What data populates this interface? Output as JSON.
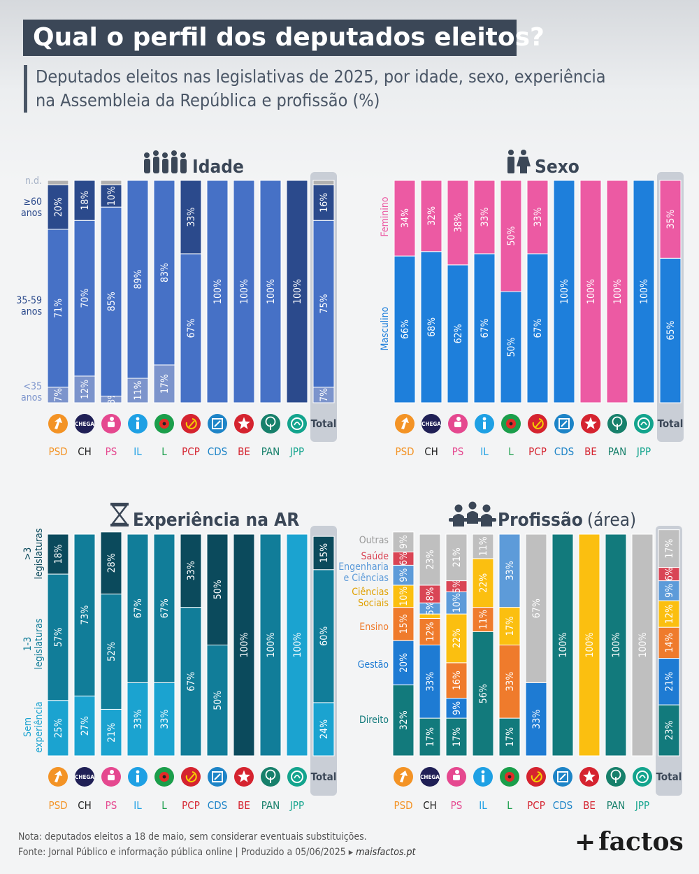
{
  "header": {
    "title": "Qual o perfil dos deputados eleitos?",
    "subtitle_line1": "Deputados eleitos nas legislativas de 2025, por idade, sexo, experiência",
    "subtitle_line2": "na Assembleia da República e profissão (%)"
  },
  "parties": [
    {
      "name": "PSD",
      "color": "#f39325",
      "logo": "psd-arrow-icon"
    },
    {
      "name": "CH",
      "color": "#202056",
      "logo": "chega-logo"
    },
    {
      "name": "PS",
      "color": "#e5488f",
      "logo": "ps-fist-rose-icon"
    },
    {
      "name": "IL",
      "color": "#1ea0e4",
      "logo": "il-i-icon"
    },
    {
      "name": "L",
      "color": "#1b9e4b",
      "logo": "livre-poppy-icon"
    },
    {
      "name": "PCP",
      "color": "#d5232f",
      "logo": "pcp-hammer-sickle-icon"
    },
    {
      "name": "CDS",
      "color": "#1d84c7",
      "logo": "cds-square-icon"
    },
    {
      "name": "BE",
      "color": "#d5232f",
      "logo": "be-star-figure-icon"
    },
    {
      "name": "PAN",
      "color": "#17806b",
      "logo": "pan-tree-icon"
    },
    {
      "name": "JPP",
      "color": "#13a48d",
      "logo": "jpp-circle-icon"
    }
  ],
  "total_label": "Total",
  "chart_data": [
    {
      "type": "bar",
      "stacked": true,
      "title": "Idade",
      "icon": "people-silhouettes-icon",
      "categories": [
        "PSD",
        "CH",
        "PS",
        "IL",
        "L",
        "PCP",
        "CDS",
        "BE",
        "PAN",
        "JPP",
        "Total"
      ],
      "series": [
        {
          "name": "<35 anos",
          "values": [
            7,
            12,
            3,
            11,
            17,
            0,
            0,
            0,
            0,
            0,
            7
          ],
          "color": "#7c94cc"
        },
        {
          "name": "35-59 anos",
          "values": [
            71,
            70,
            85,
            89,
            83,
            67,
            100,
            100,
            100,
            100,
            75
          ],
          "color": "#4671c6"
        },
        {
          "name": "≥60 anos",
          "values": [
            20,
            18,
            10,
            0,
            0,
            33,
            0,
            0,
            0,
            0,
            16
          ],
          "color": "#2b4a8c"
        },
        {
          "name": "n.d.",
          "values": [
            2,
            0,
            2,
            0,
            0,
            0,
            0,
            0,
            0,
            0,
            2
          ],
          "color": "#b0b0b0"
        }
      ],
      "full_colors": {
        "JPP": "#2b4a8c"
      },
      "ylim": [
        0,
        100
      ]
    },
    {
      "type": "bar",
      "stacked": true,
      "title": "Sexo",
      "icon": "man-woman-icon",
      "categories": [
        "PSD",
        "CH",
        "PS",
        "IL",
        "L",
        "PCP",
        "CDS",
        "BE",
        "PAN",
        "JPP",
        "Total"
      ],
      "series": [
        {
          "name": "Masculino",
          "values": [
            66,
            68,
            62,
            67,
            50,
            67,
            100,
            0,
            0,
            100,
            65
          ],
          "color": "#1e7fdb"
        },
        {
          "name": "Feminino",
          "values": [
            34,
            32,
            38,
            33,
            50,
            33,
            0,
            100,
            100,
            0,
            35
          ],
          "color": "#ec5aa3"
        }
      ],
      "ylim": [
        0,
        100
      ]
    },
    {
      "type": "bar",
      "stacked": true,
      "title": "Experiência na AR",
      "icon": "hourglass-icon",
      "categories": [
        "PSD",
        "CH",
        "PS",
        "IL",
        "L",
        "PCP",
        "CDS",
        "BE",
        "PAN",
        "JPP",
        "Total"
      ],
      "series": [
        {
          "name": "Sem experiência",
          "values": [
            25,
            27,
            21,
            33,
            33,
            0,
            0,
            0,
            0,
            100,
            24
          ],
          "color": "#1ba3d0"
        },
        {
          "name": "1-3 legislaturas",
          "values": [
            57,
            73,
            52,
            67,
            67,
            67,
            50,
            0,
            100,
            0,
            60
          ],
          "color": "#117d99"
        },
        {
          "name": ">3 legislaturas",
          "values": [
            18,
            0,
            28,
            0,
            0,
            33,
            50,
            100,
            0,
            0,
            15
          ],
          "color": "#0b4a5c"
        }
      ],
      "ylim": [
        0,
        100
      ]
    },
    {
      "type": "bar",
      "stacked": true,
      "title": "Profissão",
      "title_suffix": "(área)",
      "icon": "professionals-icon",
      "categories": [
        "PSD",
        "CH",
        "PS",
        "IL",
        "L",
        "PCP",
        "CDS",
        "BE",
        "PAN",
        "JPP",
        "Total"
      ],
      "series": [
        {
          "name": "Direito",
          "values": [
            32,
            17,
            17,
            56,
            17,
            0,
            100,
            0,
            100,
            0,
            23
          ],
          "color": "#127a7c"
        },
        {
          "name": "Gestão",
          "values": [
            20,
            33,
            9,
            0,
            0,
            33,
            0,
            0,
            0,
            0,
            21
          ],
          "color": "#1e7bd3"
        },
        {
          "name": "Ensino",
          "values": [
            15,
            12,
            16,
            11,
            33,
            0,
            0,
            0,
            0,
            0,
            14
          ],
          "color": "#ef7b2c"
        },
        {
          "name": "Ciências Sociais",
          "values": [
            10,
            2,
            22,
            22,
            17,
            0,
            0,
            100,
            0,
            0,
            12
          ],
          "color": "#fbbf10"
        },
        {
          "name": "Engenharia e Ciências",
          "values": [
            9,
            5,
            10,
            0,
            33,
            0,
            0,
            0,
            0,
            0,
            9
          ],
          "color": "#5d9bd9"
        },
        {
          "name": "Saúde",
          "values": [
            6,
            8,
            5,
            0,
            0,
            0,
            0,
            0,
            0,
            0,
            6
          ],
          "color": "#d94555"
        },
        {
          "name": "Outras",
          "values": [
            9,
            23,
            21,
            11,
            0,
            67,
            0,
            0,
            0,
            100,
            17
          ],
          "color": "#bfbfbf"
        }
      ],
      "ylim": [
        0,
        100
      ]
    }
  ],
  "footer": {
    "note": "Nota: deputados eleitos a 18 de maio, sem considerar eventuais substituições.",
    "source": "Fonte: Jornal Público e informação pública online  |  Produzido a 05/06/2025 ▸ ",
    "site": "maisfactos.pt",
    "brand_plus": "+",
    "brand_name": "factos"
  }
}
